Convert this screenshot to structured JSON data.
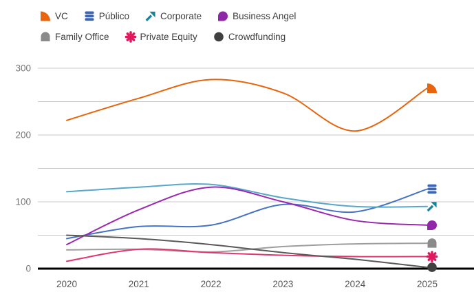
{
  "chart_data": {
    "type": "line",
    "title": "",
    "xlabel": "",
    "ylabel": "",
    "x": [
      2020,
      2021,
      2022,
      2023,
      2024,
      2025
    ],
    "x_tick_labels": [
      "2020",
      "2021",
      "2022",
      "2023",
      "2024",
      "2025"
    ],
    "ylim": [
      0,
      300
    ],
    "gridline_step": 50,
    "y_tick_labels": [
      "0",
      "100",
      "200",
      "300"
    ],
    "y_tick_values": [
      0,
      100,
      200,
      300
    ],
    "grid": "on",
    "legend_position": "top",
    "series": [
      {
        "name": "VC",
        "marker": "quarter-circle",
        "line_color": "#e8650d",
        "marker_color": "#e8650d",
        "values": [
          222,
          255,
          283,
          263,
          206,
          270
        ]
      },
      {
        "name": "Público",
        "marker": "stacked-bars",
        "line_color": "#4472c4",
        "marker_color": "#3b66b8",
        "values": [
          45,
          63,
          65,
          96,
          85,
          119
        ]
      },
      {
        "name": "Corporate",
        "marker": "arrow-up-right",
        "line_color": "#56a7ca",
        "marker_color": "#17849e",
        "values": [
          115,
          122,
          126,
          106,
          93,
          93
        ]
      },
      {
        "name": "Business Angel",
        "marker": "teardrop",
        "line_color": "#9c27b0",
        "marker_color": "#9027a8",
        "values": [
          36,
          88,
          122,
          100,
          72,
          65
        ]
      },
      {
        "name": "Family Office",
        "marker": "dome",
        "line_color": "#9e9e9e",
        "marker_color": "#8a8a8a",
        "values": [
          28,
          29,
          25,
          33,
          37,
          38
        ]
      },
      {
        "name": "Private Equity",
        "marker": "asterisk",
        "line_color": "#e2366f",
        "marker_color": "#e0195e",
        "values": [
          11,
          29,
          24,
          20,
          18,
          18
        ]
      },
      {
        "name": "Crowdfunding",
        "marker": "circle",
        "line_color": "#595959",
        "marker_color": "#404040",
        "values": [
          50,
          45,
          36,
          24,
          14,
          2
        ]
      }
    ]
  },
  "legend": {
    "rows": [
      [
        0,
        1,
        2,
        3
      ],
      [
        4,
        5,
        6
      ]
    ]
  },
  "style": {
    "gridline_color": "#c9c9c9",
    "zero_axis_color": "#000000",
    "y_label_color": "#757575",
    "x_label_color": "#575757",
    "legend_text_color": "#3d3d3d",
    "background": "#ffffff"
  }
}
